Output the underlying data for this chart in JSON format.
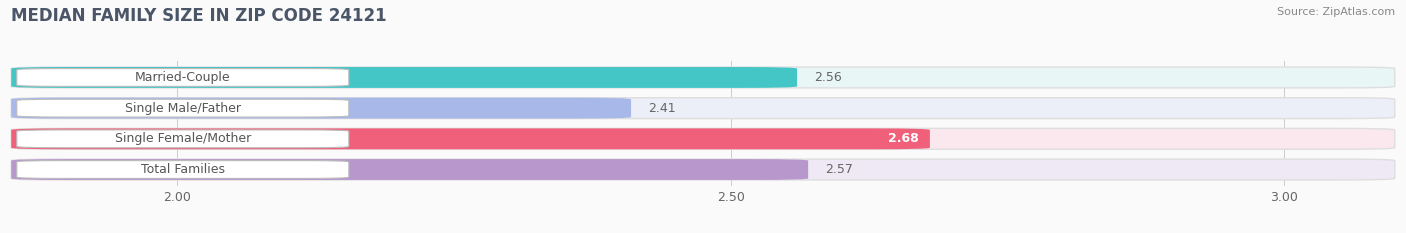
{
  "title": "MEDIAN FAMILY SIZE IN ZIP CODE 24121",
  "source": "Source: ZipAtlas.com",
  "categories": [
    "Married-Couple",
    "Single Male/Father",
    "Single Female/Mother",
    "Total Families"
  ],
  "values": [
    2.56,
    2.41,
    2.68,
    2.57
  ],
  "bar_colors": [
    "#45C6C6",
    "#A8B8E8",
    "#F0607A",
    "#B898CC"
  ],
  "bar_bg_colors": [
    "#E8F6F6",
    "#ECEEF8",
    "#FAE8EE",
    "#EFE8F5"
  ],
  "value_colors": [
    "#666666",
    "#666666",
    "#FFFFFF",
    "#666666"
  ],
  "xlim_min": 1.85,
  "xlim_max": 3.1,
  "xticks": [
    2.0,
    2.5,
    3.0
  ],
  "xtick_labels": [
    "2.00",
    "2.50",
    "3.00"
  ],
  "figsize": [
    14.06,
    2.33
  ],
  "dpi": 100,
  "title_fontsize": 12,
  "bar_height": 0.68,
  "label_fontsize": 9,
  "value_fontsize": 9,
  "title_color": "#4A5568",
  "source_color": "#888888",
  "bg_color": "#FAFAFA",
  "label_text_color": "#555555"
}
